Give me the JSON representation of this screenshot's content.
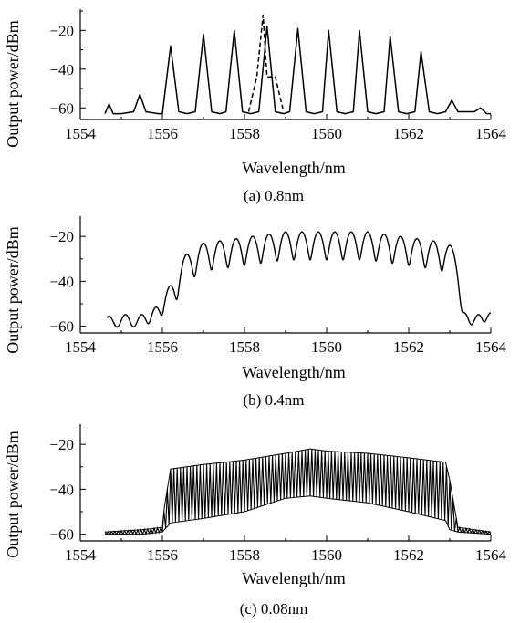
{
  "chart_data": [
    {
      "type": "line",
      "caption": "(a) 0.8nm",
      "xlabel": "Wavelength/nm",
      "ylabel": "Output power/dBm",
      "xlim": [
        1554,
        1564
      ],
      "ylim": [
        -66,
        -9
      ],
      "xticks": [
        1554,
        1556,
        1558,
        1560,
        1562,
        1564
      ],
      "yticks": [
        -60,
        -40,
        -20
      ],
      "grid": false,
      "series": [
        {
          "style": "solid",
          "x": [
            1554.6,
            1554.7,
            1554.8,
            1555.0,
            1555.3,
            1555.45,
            1555.6,
            1555.9,
            1556.0,
            1556.2,
            1556.4,
            1556.6,
            1556.8,
            1557.0,
            1557.2,
            1557.4,
            1557.55,
            1557.75,
            1557.95,
            1558.15,
            1558.35,
            1558.55,
            1558.75,
            1558.95,
            1559.1,
            1559.3,
            1559.5,
            1559.7,
            1559.9,
            1560.05,
            1560.25,
            1560.45,
            1560.65,
            1560.8,
            1561.0,
            1561.2,
            1561.4,
            1561.55,
            1561.75,
            1561.95,
            1562.15,
            1562.3,
            1562.5,
            1562.7,
            1562.9,
            1563.05,
            1563.2,
            1563.6,
            1563.75,
            1563.9,
            1564.0
          ],
          "y": [
            -63,
            -58,
            -63,
            -63,
            -62,
            -53,
            -62,
            -63,
            -63,
            -28,
            -62,
            -63,
            -62,
            -22,
            -62,
            -63,
            -62,
            -20,
            -62,
            -63,
            -62,
            -18,
            -62,
            -63,
            -62,
            -19,
            -62,
            -63,
            -62,
            -20,
            -62,
            -63,
            -62,
            -20,
            -62,
            -63,
            -62,
            -23,
            -62,
            -63,
            -62,
            -31,
            -62,
            -63,
            -62,
            -56,
            -62,
            -62,
            -60,
            -63,
            -63
          ]
        },
        {
          "style": "dashed",
          "x": [
            1558.1,
            1558.3,
            1558.45,
            1558.55,
            1558.75,
            1558.95
          ],
          "y": [
            -62,
            -44,
            -12,
            -44,
            -44,
            -62
          ]
        }
      ]
    },
    {
      "type": "line",
      "caption": "(b) 0.4nm",
      "xlabel": "Wavelength/nm",
      "ylabel": "Output power/dBm",
      "xlim": [
        1554,
        1564
      ],
      "ylim": [
        -63,
        -11
      ],
      "xticks": [
        1554,
        1556,
        1558,
        1560,
        1562,
        1564
      ],
      "yticks": [
        -60,
        -40,
        -20
      ],
      "grid": false,
      "peaks": {
        "x": [
          1554.7,
          1555.1,
          1555.5,
          1555.85,
          1556.2,
          1556.6,
          1557.0,
          1557.4,
          1557.8,
          1558.2,
          1558.6,
          1559.0,
          1559.4,
          1559.8,
          1560.2,
          1560.6,
          1561.0,
          1561.4,
          1561.8,
          1562.2,
          1562.6,
          1563.0,
          1563.35,
          1563.7,
          1564.0
        ],
        "y": [
          -57,
          -56,
          -56,
          -52,
          -42,
          -28,
          -23,
          -22,
          -21,
          -20,
          -19,
          -18,
          -18,
          -18,
          -18,
          -18,
          -18,
          -19,
          -20,
          -21,
          -22,
          -24,
          -55,
          -56,
          -55
        ]
      },
      "floor_dBm": -61
    },
    {
      "type": "line",
      "caption": "(c) 0.08nm",
      "xlabel": "Wavelength/nm",
      "ylabel": "Output power/dBm",
      "xlim": [
        1554,
        1564
      ],
      "ylim": [
        -63,
        -11
      ],
      "xticks": [
        1554,
        1556,
        1558,
        1560,
        1562,
        1564
      ],
      "yticks": [
        -60,
        -40,
        -20
      ],
      "grid": false,
      "envelope": {
        "x": [
          1554.6,
          1555.5,
          1556.0,
          1556.05,
          1556.2,
          1557.0,
          1558.0,
          1559.0,
          1559.6,
          1560.0,
          1561.0,
          1562.0,
          1562.9,
          1563.0,
          1563.2,
          1564.0
        ],
        "upper": [
          -59,
          -58,
          -57,
          -48,
          -31,
          -29,
          -27,
          -24,
          -22,
          -23,
          -24,
          -26,
          -28,
          -36,
          -57,
          -59
        ],
        "lower": [
          -60,
          -60,
          -59,
          -58,
          -55,
          -53,
          -50,
          -44,
          -43,
          -44,
          -46,
          -50,
          -54,
          -58,
          -59,
          -60
        ]
      }
    }
  ]
}
